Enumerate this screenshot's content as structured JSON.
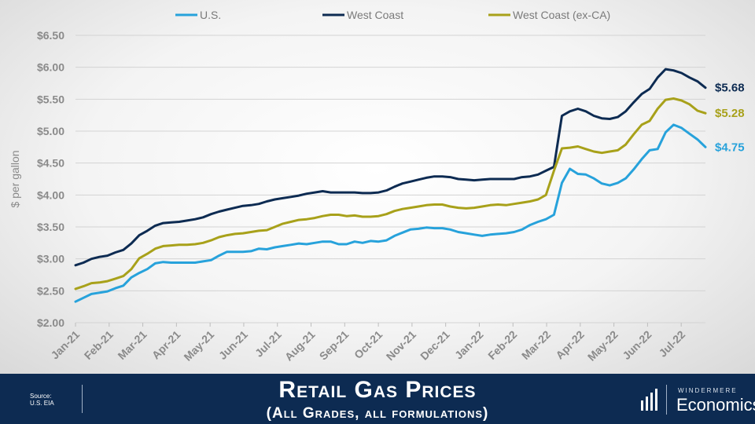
{
  "chart_data": {
    "type": "line",
    "title": "Retail Gas Prices",
    "subtitle": "(All Grades, all formulations)",
    "ylabel": "$ per gallon",
    "xlabel": "",
    "ylim": [
      2.0,
      6.5
    ],
    "y_tick_values": [
      2.0,
      2.5,
      3.0,
      3.5,
      4.0,
      4.5,
      5.0,
      5.5,
      6.0,
      6.5
    ],
    "y_tick_labels": [
      "$2.00",
      "$2.50",
      "$3.00",
      "$3.50",
      "$4.00",
      "$4.50",
      "$5.00",
      "$5.50",
      "$6.00",
      "$6.50"
    ],
    "x_tick_labels": [
      "Jan-21",
      "Feb-21",
      "Mar-21",
      "Apr-21",
      "May-21",
      "Jun-21",
      "Jul-21",
      "Aug-21",
      "Sep-21",
      "Oct-21",
      "Nov-21",
      "Dec-21",
      "Jan-22",
      "Feb-22",
      "Mar-22",
      "Apr-22",
      "May-22",
      "Jun-22",
      "Jul-22"
    ],
    "x_unit": "weeks",
    "grid": true,
    "legend_position": "top",
    "series": [
      {
        "name": "U.S.",
        "color": "#27a2db",
        "end_label": "$4.75",
        "values": [
          2.33,
          2.39,
          2.45,
          2.47,
          2.49,
          2.54,
          2.58,
          2.71,
          2.78,
          2.84,
          2.93,
          2.95,
          2.94,
          2.94,
          2.94,
          2.94,
          2.96,
          2.98,
          3.05,
          3.11,
          3.11,
          3.11,
          3.12,
          3.16,
          3.15,
          3.18,
          3.2,
          3.22,
          3.24,
          3.23,
          3.25,
          3.27,
          3.27,
          3.23,
          3.23,
          3.27,
          3.25,
          3.28,
          3.27,
          3.29,
          3.36,
          3.41,
          3.46,
          3.47,
          3.49,
          3.48,
          3.48,
          3.46,
          3.42,
          3.4,
          3.38,
          3.36,
          3.38,
          3.39,
          3.4,
          3.42,
          3.46,
          3.53,
          3.58,
          3.62,
          3.69,
          4.19,
          4.41,
          4.33,
          4.32,
          4.26,
          4.18,
          4.15,
          4.19,
          4.26,
          4.4,
          4.56,
          4.7,
          4.72,
          4.98,
          5.1,
          5.05,
          4.96,
          4.87,
          4.75
        ]
      },
      {
        "name": "West Coast",
        "color": "#0d2b52",
        "end_label": "$5.68",
        "values": [
          2.9,
          2.94,
          3.0,
          3.03,
          3.05,
          3.1,
          3.14,
          3.24,
          3.37,
          3.44,
          3.52,
          3.56,
          3.57,
          3.58,
          3.6,
          3.62,
          3.65,
          3.7,
          3.74,
          3.77,
          3.8,
          3.83,
          3.84,
          3.86,
          3.9,
          3.93,
          3.95,
          3.97,
          3.99,
          4.02,
          4.04,
          4.06,
          4.04,
          4.04,
          4.04,
          4.04,
          4.03,
          4.03,
          4.04,
          4.07,
          4.13,
          4.18,
          4.21,
          4.24,
          4.27,
          4.29,
          4.29,
          4.28,
          4.25,
          4.24,
          4.23,
          4.24,
          4.25,
          4.25,
          4.25,
          4.25,
          4.28,
          4.29,
          4.32,
          4.38,
          4.44,
          5.24,
          5.31,
          5.35,
          5.31,
          5.24,
          5.2,
          5.19,
          5.22,
          5.31,
          5.45,
          5.58,
          5.66,
          5.84,
          5.97,
          5.95,
          5.91,
          5.84,
          5.78,
          5.68
        ]
      },
      {
        "name": "West Coast (ex-CA)",
        "color": "#a8a11a",
        "end_label": "$5.28",
        "values": [
          2.53,
          2.57,
          2.62,
          2.63,
          2.65,
          2.69,
          2.73,
          2.84,
          3.01,
          3.08,
          3.16,
          3.2,
          3.21,
          3.22,
          3.22,
          3.23,
          3.25,
          3.29,
          3.34,
          3.37,
          3.39,
          3.4,
          3.42,
          3.44,
          3.45,
          3.5,
          3.55,
          3.58,
          3.61,
          3.62,
          3.64,
          3.67,
          3.69,
          3.69,
          3.67,
          3.68,
          3.66,
          3.66,
          3.67,
          3.7,
          3.75,
          3.78,
          3.8,
          3.82,
          3.84,
          3.85,
          3.85,
          3.82,
          3.8,
          3.79,
          3.8,
          3.82,
          3.84,
          3.85,
          3.84,
          3.86,
          3.88,
          3.9,
          3.93,
          4.0,
          4.38,
          4.73,
          4.74,
          4.76,
          4.72,
          4.68,
          4.66,
          4.68,
          4.7,
          4.79,
          4.95,
          5.1,
          5.16,
          5.35,
          5.49,
          5.51,
          5.48,
          5.42,
          5.32,
          5.28
        ]
      }
    ]
  },
  "footer": {
    "title": "Retail Gas Prices",
    "subtitle": "(All Grades, all formulations)",
    "source_heading": "Source:",
    "source_value": "U.S. EIA",
    "logo_top": "WINDERMERE",
    "logo_bottom": "Economics",
    "logo_icon": "bar-chart-icon",
    "background": "#0d2b52"
  }
}
